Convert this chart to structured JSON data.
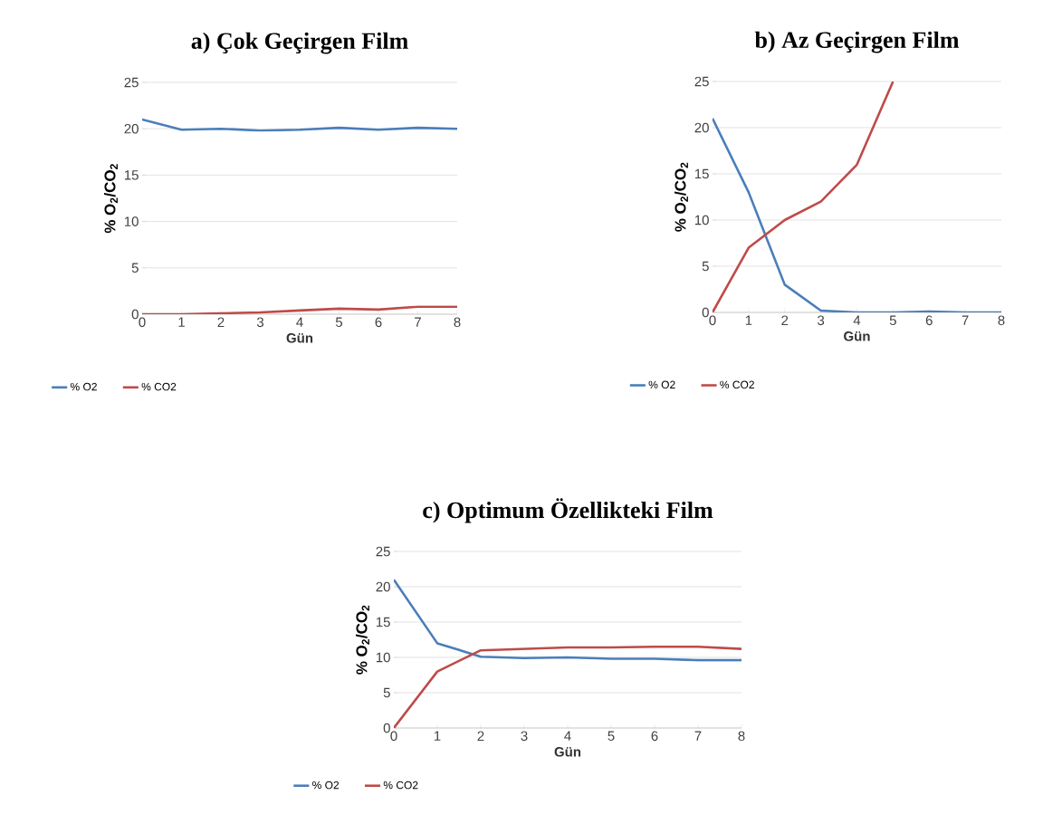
{
  "chart_data": [
    {
      "type": "line",
      "title": "a) Çok Geçirgen Film",
      "xlabel": "Gün",
      "ylabel": "% O$_{2}$/CO$_{2}$",
      "x": [
        0,
        1,
        2,
        3,
        4,
        5,
        6,
        7,
        8
      ],
      "xlim": [
        0,
        8
      ],
      "xticks": [
        0,
        1,
        2,
        3,
        4,
        5,
        6,
        7,
        8
      ],
      "ylim": [
        0,
        25
      ],
      "yticks": [
        0,
        5,
        10,
        15,
        20,
        25
      ],
      "grid": "y",
      "legend": "bottom",
      "marker": "none",
      "line_style": "solid",
      "series": [
        {
          "name": "% O2",
          "color": "#4a7ebb",
          "values": [
            21,
            19.9,
            20,
            19.8,
            19.9,
            20.1,
            19.9,
            20.1,
            20
          ]
        },
        {
          "name": "% CO2",
          "color": "#be4b48",
          "values": [
            0,
            0,
            0.1,
            0.2,
            0.4,
            0.6,
            0.5,
            0.8,
            0.8
          ]
        }
      ]
    },
    {
      "type": "line",
      "title": "b) Az Geçirgen Film",
      "xlabel": "Gün",
      "ylabel": "% O$_{2}$/CO$_{2}$",
      "x": [
        0,
        1,
        2,
        3,
        4,
        5,
        6,
        7,
        8
      ],
      "xlim": [
        0,
        8
      ],
      "xticks": [
        0,
        1,
        2,
        3,
        4,
        5,
        6,
        7,
        8
      ],
      "ylim": [
        0,
        25
      ],
      "yticks": [
        0,
        5,
        10,
        15,
        20,
        25
      ],
      "grid": "y",
      "legend": "bottom",
      "marker": "none",
      "line_style": "solid",
      "series": [
        {
          "name": "% O2",
          "color": "#4a7ebb",
          "values": [
            21,
            13,
            3,
            0.2,
            0,
            0,
            0.1,
            0,
            0
          ]
        },
        {
          "name": "% CO2",
          "color": "#be4b48",
          "values": [
            0,
            7,
            10,
            12,
            16,
            25,
            null,
            null,
            null
          ]
        }
      ]
    },
    {
      "type": "line",
      "title": "c) Optimum Özellikteki Film",
      "xlabel": "Gün",
      "ylabel": "% O$_{2}$/CO$_{2}$",
      "x": [
        0,
        1,
        2,
        3,
        4,
        5,
        6,
        7,
        8
      ],
      "xlim": [
        0,
        8
      ],
      "xticks": [
        0,
        1,
        2,
        3,
        4,
        5,
        6,
        7,
        8
      ],
      "ylim": [
        0,
        25
      ],
      "yticks": [
        0,
        5,
        10,
        15,
        20,
        25
      ],
      "grid": "y",
      "legend": "bottom",
      "marker": "none",
      "line_style": "solid",
      "series": [
        {
          "name": "% O2",
          "color": "#4a7ebb",
          "values": [
            21,
            12,
            10.1,
            9.9,
            10,
            9.8,
            9.8,
            9.6,
            9.6
          ]
        },
        {
          "name": "% CO2",
          "color": "#be4b48",
          "values": [
            0,
            8,
            11,
            11.2,
            11.4,
            11.4,
            11.5,
            11.5,
            11.2
          ]
        }
      ]
    }
  ]
}
